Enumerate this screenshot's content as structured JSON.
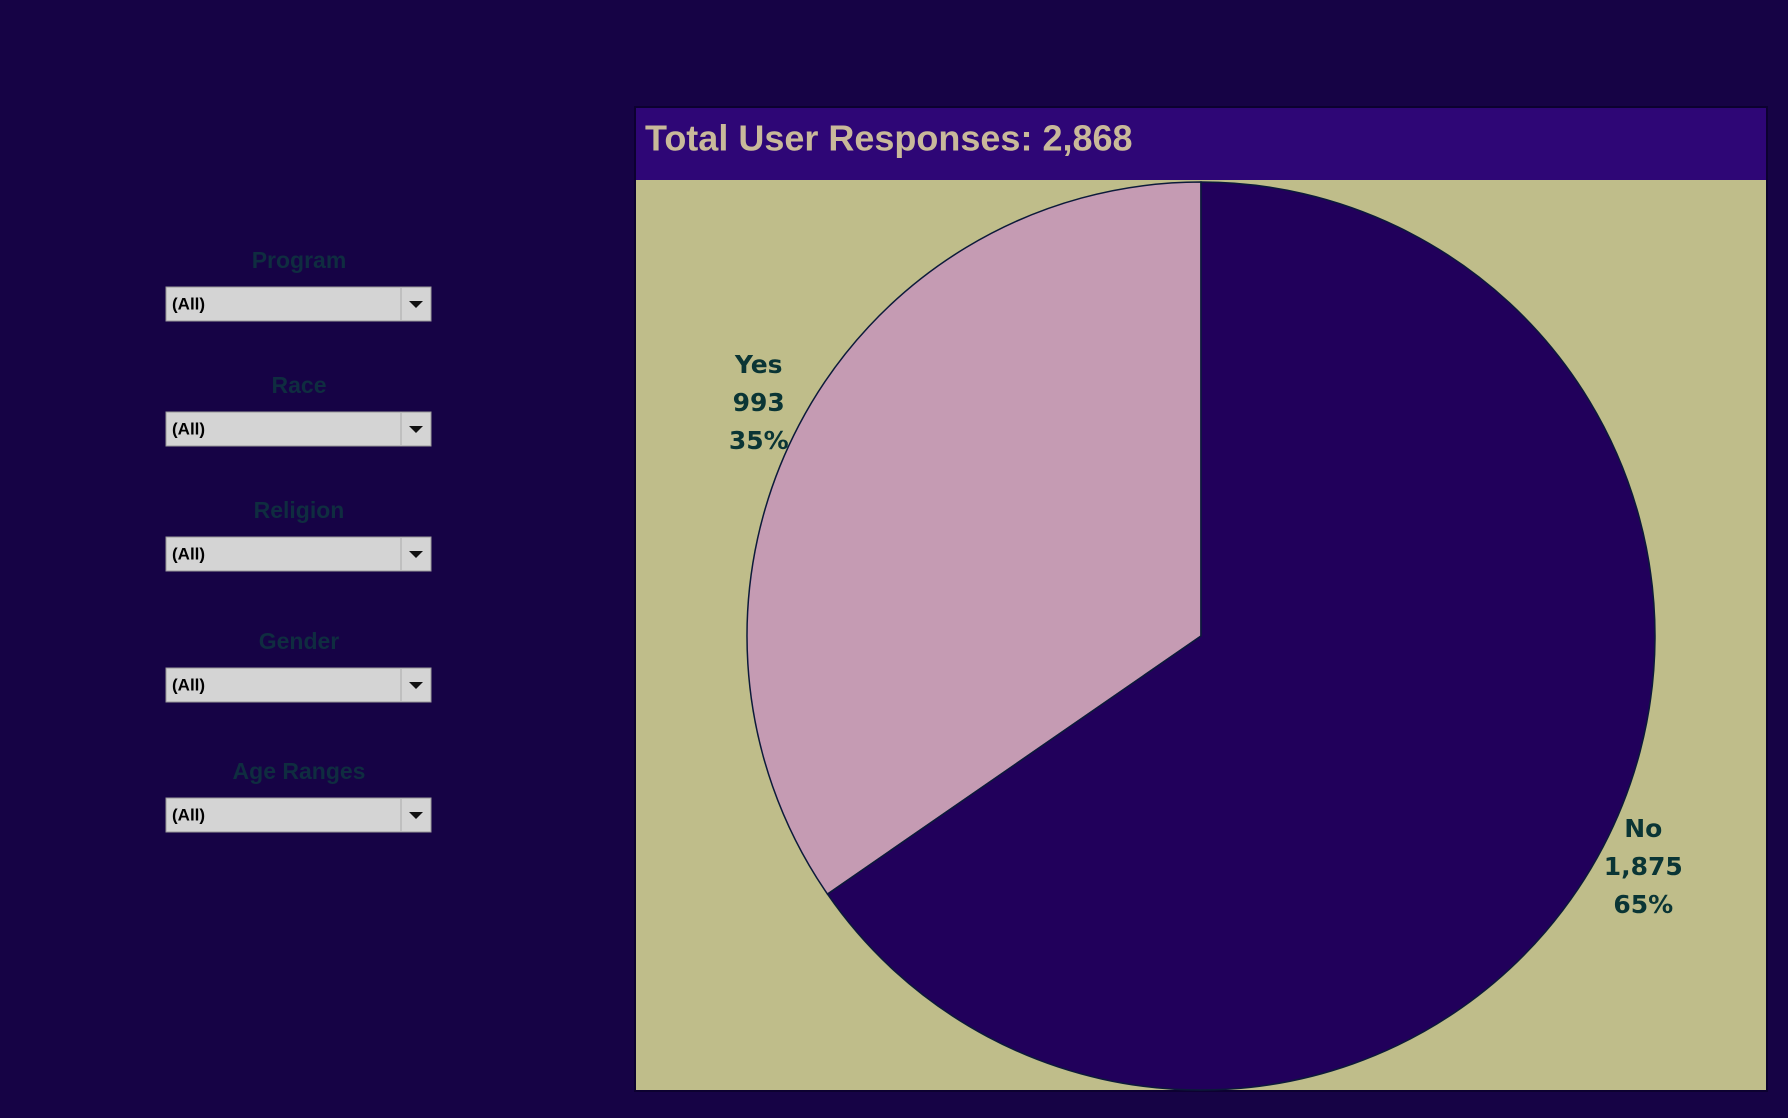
{
  "filters": [
    {
      "label": "Program",
      "value": "(All)"
    },
    {
      "label": "Race",
      "value": "(All)"
    },
    {
      "label": "Religion",
      "value": "(All)"
    },
    {
      "label": "Gender",
      "value": "(All)"
    },
    {
      "label": "Age Ranges",
      "value": "(All)"
    }
  ],
  "chart_data": {
    "type": "pie",
    "title": "Total User Responses: 2,868",
    "categories": [
      "Yes",
      "No"
    ],
    "values": [
      993,
      1875
    ],
    "value_labels": [
      "993",
      "1,875"
    ],
    "percent_labels": [
      "35%",
      "65%"
    ],
    "colors": [
      "#c59bb3",
      "#21005b"
    ]
  }
}
